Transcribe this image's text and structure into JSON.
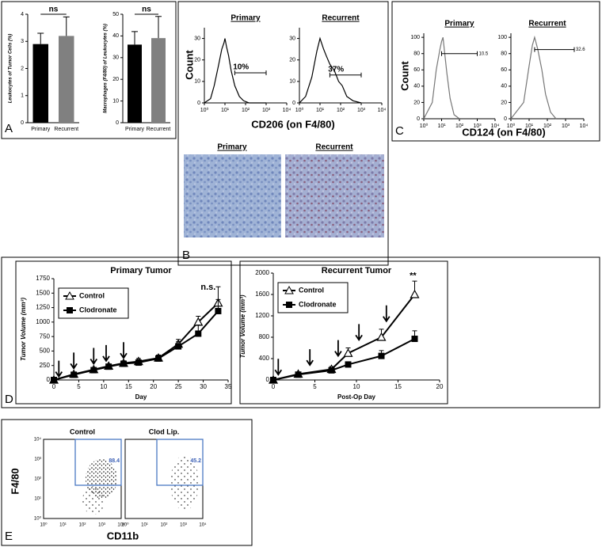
{
  "chart_data": [
    {
      "type": "bar",
      "categories": [
        "Primary",
        "Recurrent"
      ],
      "values": [
        2.9,
        3.2
      ],
      "errors": [
        0.4,
        0.7
      ],
      "colors": [
        "#000000",
        "#808080"
      ],
      "ylim": [
        0,
        4
      ],
      "yticks": [
        0,
        1,
        2,
        3,
        4
      ],
      "ylabel": "Leukocytes of Tumor Cells (%)",
      "annotation": "ns"
    },
    {
      "type": "bar",
      "categories": [
        "Primary",
        "Recurrent"
      ],
      "values": [
        36,
        39
      ],
      "errors": [
        6,
        10
      ],
      "colors": [
        "#000000",
        "#808080"
      ],
      "ylim": [
        0,
        50
      ],
      "yticks": [
        0,
        10,
        20,
        30,
        40,
        50
      ],
      "ylabel": "Macrophages (F4/80) of Leukocytes (%)",
      "annotation": "ns"
    },
    {
      "type": "line",
      "title": "Primary",
      "xlog": true,
      "x": [
        1,
        2,
        3,
        5,
        7,
        9,
        10,
        12,
        15,
        20,
        30,
        50,
        80,
        150,
        1000
      ],
      "series": [
        {
          "color": "#000000",
          "values": [
            0,
            2,
            8,
            18,
            25,
            28,
            30,
            26,
            22,
            15,
            8,
            3,
            1,
            0,
            0
          ]
        }
      ],
      "xlim": [
        1,
        10000
      ],
      "xticks": [
        {
          "value": 1,
          "label": "10⁰"
        },
        {
          "value": 10,
          "label": "10¹"
        },
        {
          "value": 100,
          "label": "10²"
        },
        {
          "value": 1000,
          "label": "10³"
        },
        {
          "value": 10000,
          "label": "10⁴"
        }
      ],
      "ylim": [
        0,
        35
      ],
      "yticks": [
        0,
        10,
        20,
        30
      ],
      "gate": {
        "x": [
          30,
          1000
        ],
        "y": 14,
        "label": "10%"
      }
    },
    {
      "type": "line",
      "title": "Recurrent",
      "xlog": true,
      "x": [
        1,
        2,
        4,
        7,
        10,
        15,
        20,
        30,
        50,
        80,
        120,
        200,
        400,
        1000
      ],
      "series": [
        {
          "color": "#000000",
          "values": [
            0,
            3,
            12,
            24,
            30,
            25,
            22,
            18,
            15,
            10,
            8,
            3,
            1,
            0
          ]
        }
      ],
      "xlim": [
        1,
        10000
      ],
      "xticks": [
        {
          "value": 1,
          "label": "10⁰"
        },
        {
          "value": 10,
          "label": "10¹"
        },
        {
          "value": 100,
          "label": "10²"
        },
        {
          "value": 1000,
          "label": "10³"
        },
        {
          "value": 10000,
          "label": "10⁴"
        }
      ],
      "ylim": [
        0,
        35
      ],
      "yticks": [
        0,
        10,
        20,
        30
      ],
      "gate": {
        "x": [
          30,
          1000
        ],
        "y": 13,
        "label": "37%"
      }
    },
    {
      "type": "line",
      "title": "Primary",
      "xlog": true,
      "x": [
        1,
        3,
        5,
        8,
        10,
        12,
        15,
        20,
        30,
        50,
        100
      ],
      "series": [
        {
          "color": "#777777",
          "values": [
            0,
            20,
            60,
            85,
            95,
            100,
            80,
            55,
            25,
            5,
            0
          ]
        }
      ],
      "xlim": [
        1,
        10000
      ],
      "xticks": [
        {
          "value": 1,
          "label": "10⁰"
        },
        {
          "value": 10,
          "label": "10¹"
        },
        {
          "value": 100,
          "label": "10²"
        },
        {
          "value": 1000,
          "label": "10³"
        },
        {
          "value": 10000,
          "label": "10⁴"
        }
      ],
      "ylim": [
        0,
        105
      ],
      "yticks": [
        0,
        20,
        40,
        60,
        80,
        100
      ],
      "gate": {
        "x": [
          10,
          1000
        ],
        "y": 80,
        "label": "10.5"
      }
    },
    {
      "type": "line",
      "title": "Recurrent",
      "xlog": true,
      "x": [
        1,
        5,
        10,
        15,
        20,
        30,
        50,
        80,
        150,
        300
      ],
      "series": [
        {
          "color": "#777777",
          "values": [
            0,
            20,
            65,
            90,
            100,
            85,
            60,
            30,
            8,
            0
          ]
        }
      ],
      "xlim": [
        1,
        10000
      ],
      "xticks": [
        {
          "value": 1,
          "label": "10⁰"
        },
        {
          "value": 10,
          "label": "10¹"
        },
        {
          "value": 100,
          "label": "10²"
        },
        {
          "value": 1000,
          "label": "10³"
        },
        {
          "value": 10000,
          "label": "10⁴"
        }
      ],
      "ylim": [
        0,
        105
      ],
      "yticks": [
        0,
        20,
        40,
        60,
        80,
        100
      ],
      "gate": {
        "x": [
          20,
          3000
        ],
        "y": 85,
        "label": "32.6"
      }
    },
    {
      "type": "line",
      "title": "Primary Tumor",
      "x": [
        0,
        4,
        8,
        11,
        14,
        17,
        21,
        25,
        29,
        33
      ],
      "series": [
        {
          "name": "Control",
          "marker": "triangle",
          "color": "#000000",
          "values": [
            0,
            100,
            180,
            240,
            290,
            320,
            380,
            620,
            1000,
            1330
          ],
          "errors": [
            0,
            20,
            30,
            30,
            40,
            50,
            50,
            80,
            100,
            280
          ]
        },
        {
          "name": "Clodronate",
          "marker": "square",
          "color": "#000000",
          "values": [
            0,
            90,
            170,
            230,
            280,
            300,
            370,
            580,
            800,
            1190
          ],
          "errors": [
            0,
            20,
            30,
            30,
            40,
            50,
            50,
            80,
            150,
            200
          ]
        }
      ],
      "xlim": [
        0,
        35
      ],
      "xticks": [
        0,
        5,
        10,
        15,
        20,
        25,
        30,
        35
      ],
      "ylim": [
        0,
        1750
      ],
      "yticks": [
        0,
        250,
        500,
        750,
        1000,
        1250,
        1500,
        1750
      ],
      "xlabel": "Day",
      "ylabel": "Tumor Volume (mm³)",
      "annotation": {
        "text": "n.s.",
        "x": 31,
        "y": 1600
      },
      "arrows": [
        {
          "x": 1,
          "y": 60
        },
        {
          "x": 4,
          "y": 200
        },
        {
          "x": 8,
          "y": 280
        },
        {
          "x": 10.5,
          "y": 330
        },
        {
          "x": 14,
          "y": 380
        }
      ]
    },
    {
      "type": "line",
      "title": "Recurrent Tumor",
      "x": [
        0,
        3,
        7,
        9,
        13,
        17
      ],
      "series": [
        {
          "name": "Control",
          "marker": "triangle",
          "color": "#000000",
          "values": [
            0,
            110,
            200,
            500,
            800,
            1600
          ],
          "errors": [
            0,
            30,
            50,
            100,
            150,
            250
          ]
        },
        {
          "name": "Clodronate",
          "marker": "square",
          "color": "#000000",
          "values": [
            0,
            100,
            180,
            290,
            450,
            770
          ],
          "errors": [
            0,
            30,
            40,
            50,
            100,
            150
          ]
        }
      ],
      "xlim": [
        0,
        20
      ],
      "xticks": [
        0,
        5,
        10,
        15,
        20
      ],
      "ylim": [
        0,
        2000
      ],
      "yticks": [
        0,
        400,
        800,
        1200,
        1600,
        2000
      ],
      "xlabel": "Post-Op Day",
      "ylabel": "Tumor Volume (mm³)",
      "annotation": {
        "text": "**",
        "x": 16.8,
        "y": 1950
      },
      "arrows": [
        {
          "x": 0.6,
          "y": 100
        },
        {
          "x": 4.4,
          "y": 280
        },
        {
          "x": 7.8,
          "y": 450
        },
        {
          "x": 10.3,
          "y": 750
        },
        {
          "x": 13.6,
          "y": 1100
        }
      ]
    }
  ],
  "panels": {
    "A": {
      "letter": "A"
    },
    "B": {
      "letter": "B",
      "ylabel": "Count",
      "xlabel": "CD206 (on F4/80)",
      "micrographs": [
        "Primary",
        "Recurrent"
      ]
    },
    "C": {
      "letter": "C",
      "ylabel": "Count",
      "xlabel": "CD124 (on F4/80)"
    },
    "D": {
      "letter": "D"
    },
    "E": {
      "letter": "E",
      "ylabel": "F4/80",
      "xlabel": "CD11b",
      "plots": [
        {
          "title": "Control",
          "gate": "88.4"
        },
        {
          "title": "Clod Lip.",
          "gate": "45.2"
        }
      ],
      "ticks": [
        "10⁰",
        "10¹",
        "10²",
        "10³",
        "10⁴"
      ]
    }
  }
}
